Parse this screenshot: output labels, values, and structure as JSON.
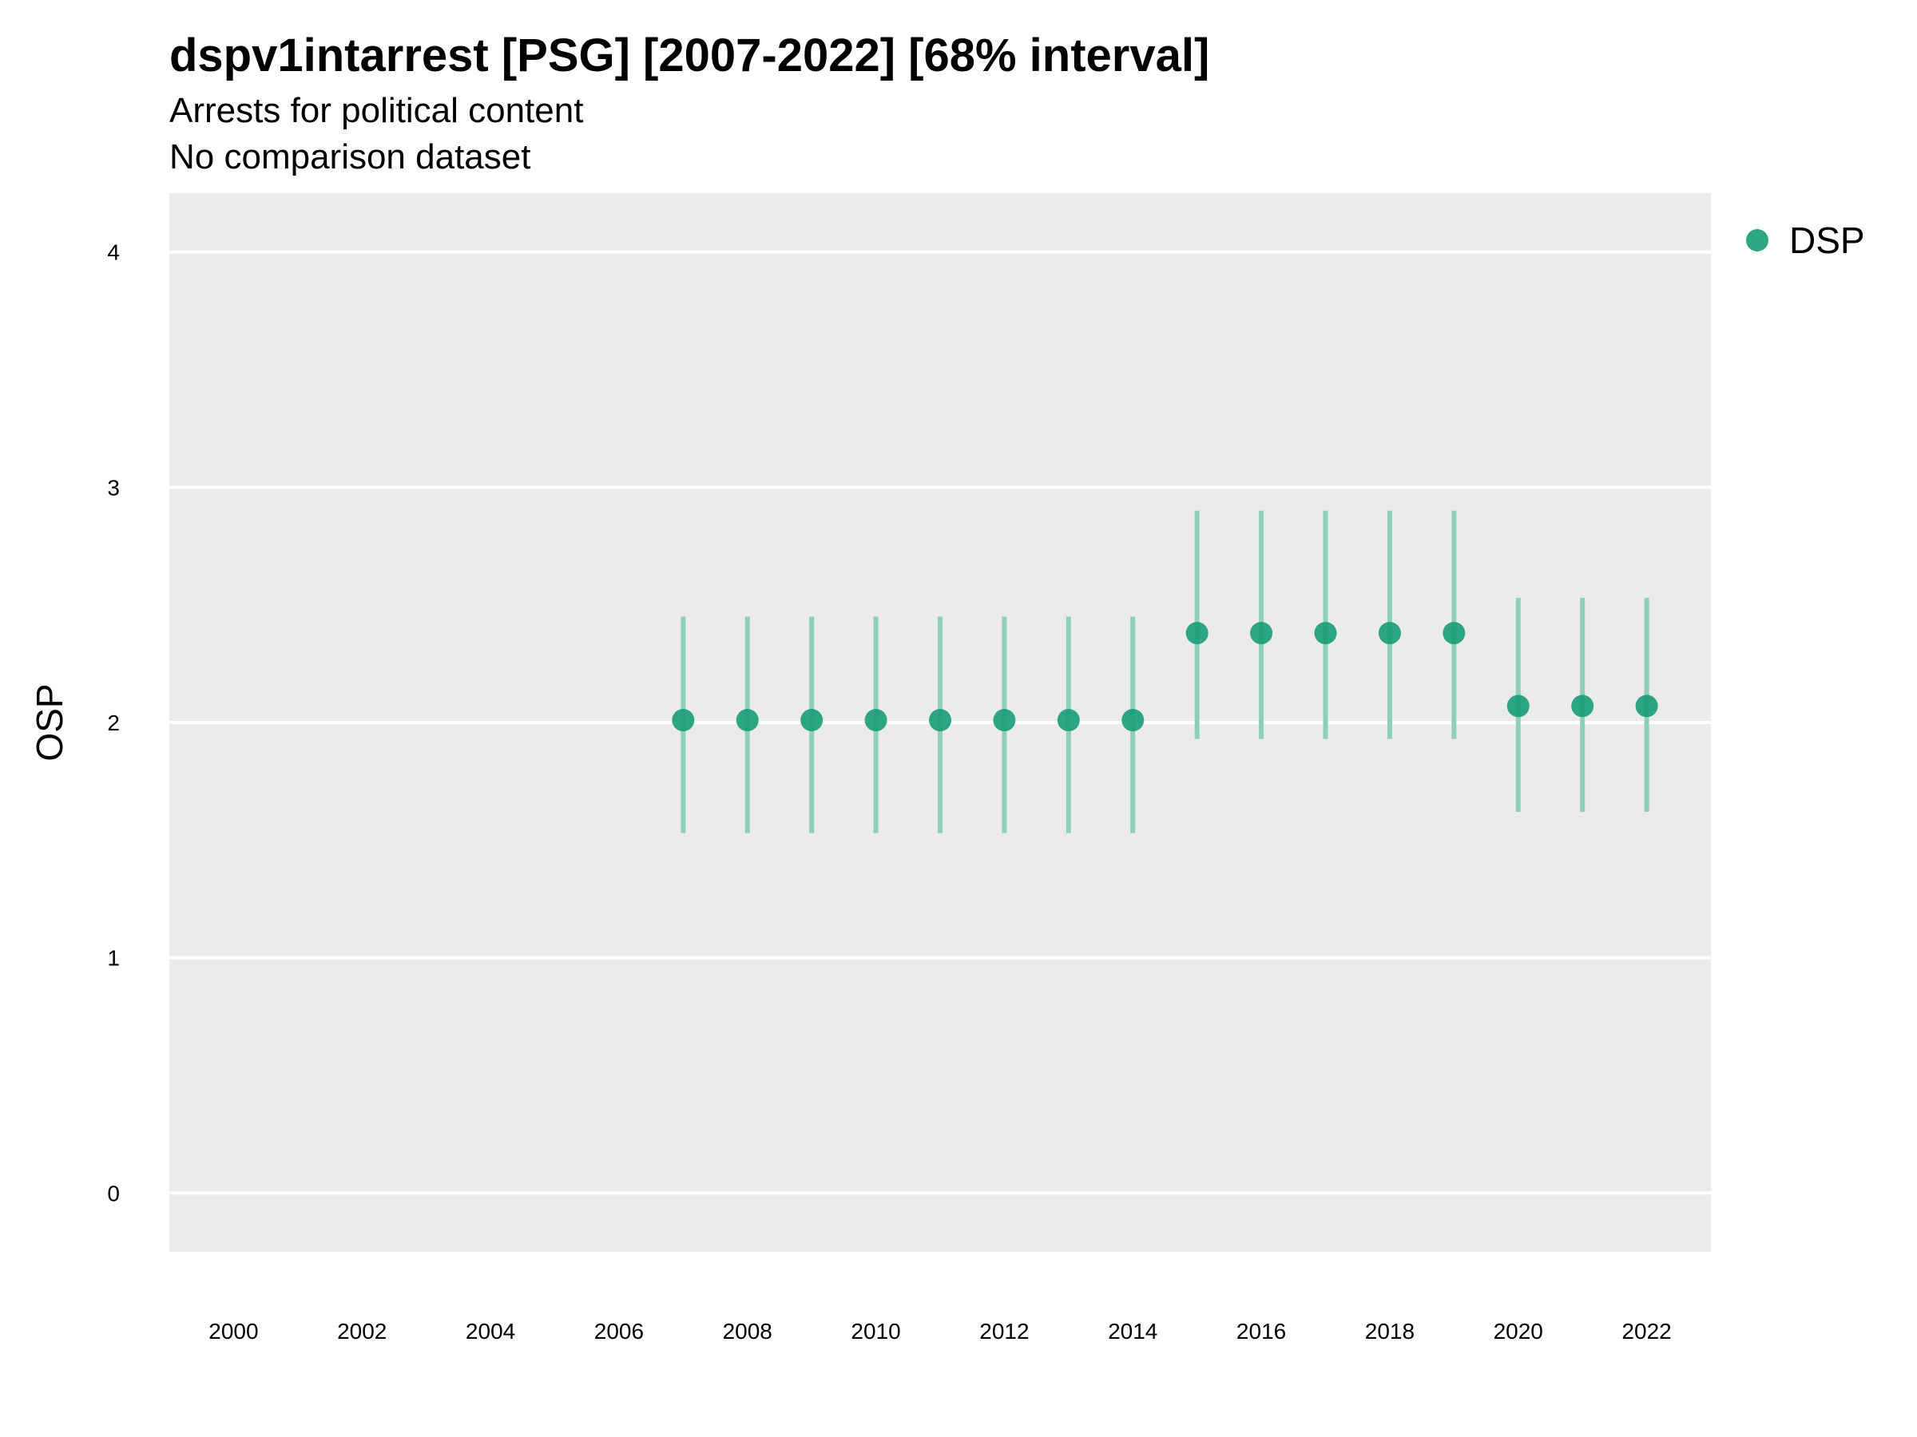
{
  "title": "dspv1intarrest [PSG] [2007-2022] [68% interval]",
  "subtitle_line1": "Arrests for political content",
  "subtitle_line2": "No comparison dataset",
  "colors": {
    "panel": "#ebebeb",
    "grid": "#ffffff",
    "point": "#1b9e77",
    "interval": "#8fceb7"
  },
  "chart_data": {
    "type": "scatter",
    "title": "dspv1intarrest [PSG] [2007-2022] [68% interval]",
    "subtitle": "Arrests for political content / No comparison dataset",
    "ylabel": "OSP",
    "xlabel": "",
    "xlim": [
      1999,
      2023
    ],
    "ylim": [
      -0.25,
      4.25
    ],
    "x_ticks": [
      2000,
      2002,
      2004,
      2006,
      2008,
      2010,
      2012,
      2014,
      2016,
      2018,
      2020,
      2022
    ],
    "y_ticks": [
      0,
      1,
      2,
      3,
      4
    ],
    "grid": true,
    "legend_position": "top-right",
    "series": [
      {
        "name": "DSP",
        "x": [
          2007,
          2008,
          2009,
          2010,
          2011,
          2012,
          2013,
          2014,
          2015,
          2016,
          2017,
          2018,
          2019,
          2020,
          2021,
          2022
        ],
        "y": [
          2.01,
          2.01,
          2.01,
          2.01,
          2.01,
          2.01,
          2.01,
          2.01,
          2.38,
          2.38,
          2.38,
          2.38,
          2.38,
          2.07,
          2.07,
          2.07
        ],
        "lower": [
          1.53,
          1.53,
          1.53,
          1.53,
          1.53,
          1.53,
          1.53,
          1.53,
          1.93,
          1.93,
          1.93,
          1.93,
          1.93,
          1.62,
          1.62,
          1.62
        ],
        "upper": [
          2.45,
          2.45,
          2.45,
          2.45,
          2.45,
          2.45,
          2.45,
          2.45,
          2.9,
          2.9,
          2.9,
          2.9,
          2.9,
          2.53,
          2.53,
          2.53
        ]
      }
    ]
  }
}
